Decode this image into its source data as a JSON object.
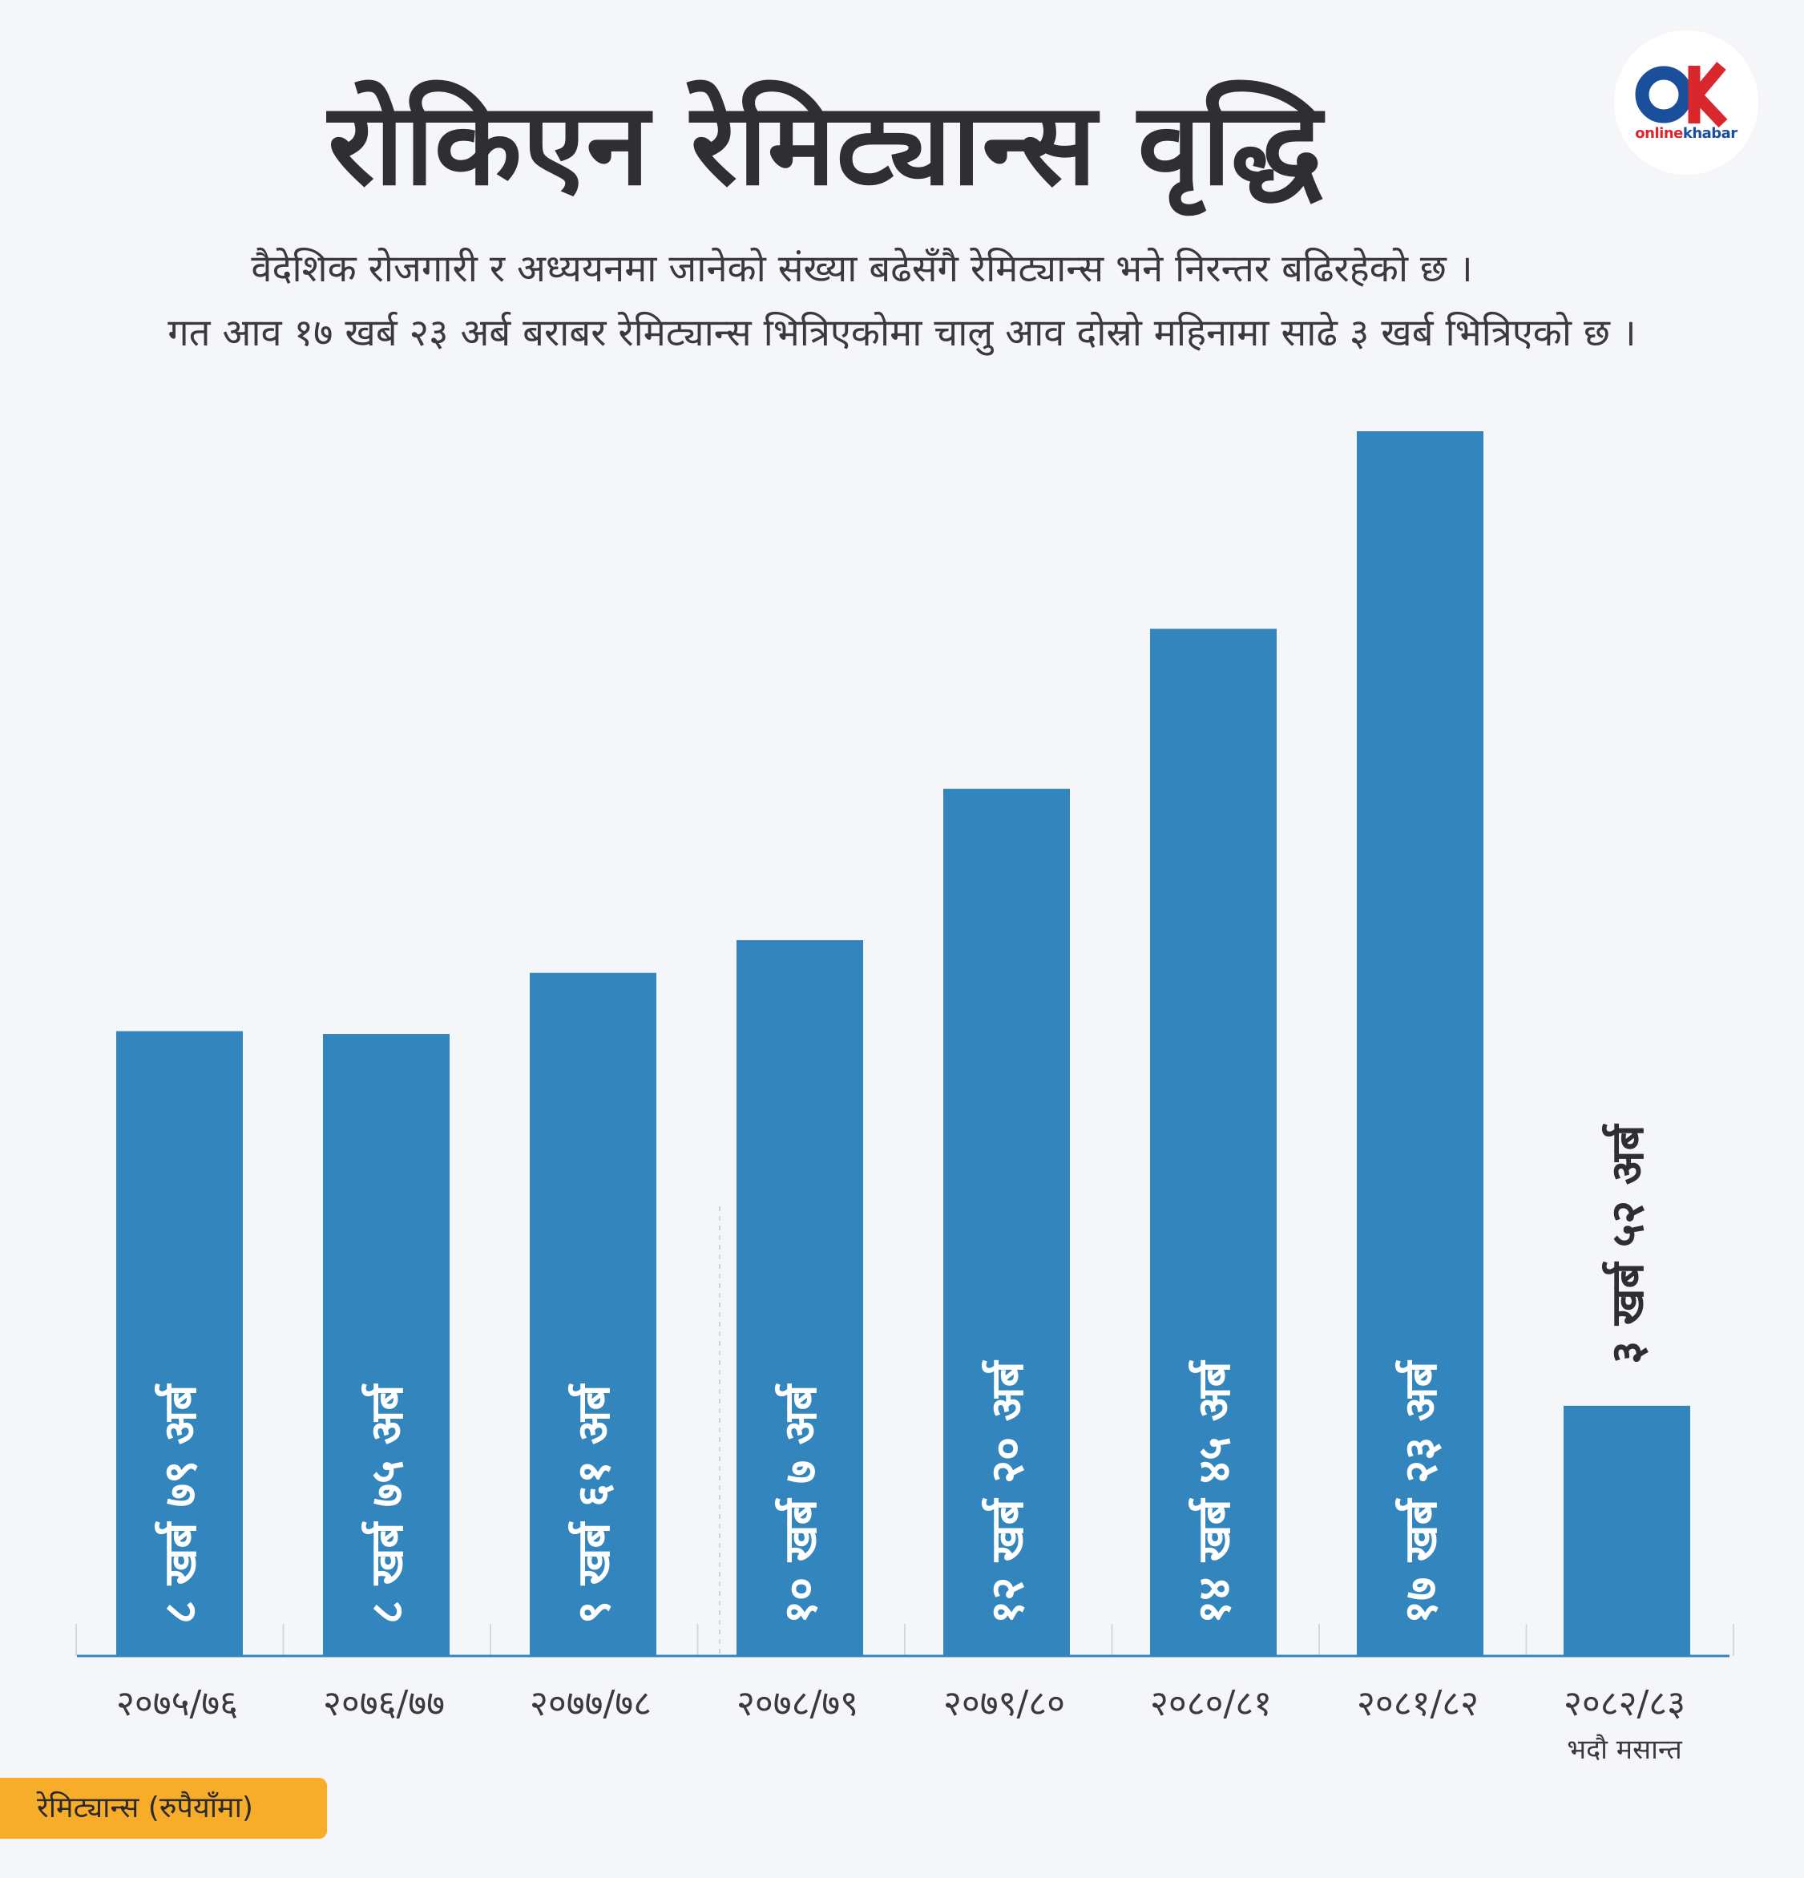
{
  "header": {
    "title": "रोकिएन रेमिट्यान्स वृद्धि",
    "subtitle_line1": "वैदेशिक रोजगारी र अध्ययनमा जानेको संख्या बढेसँगै रेमिट्यान्स भने निरन्तर  बढिरहेको छ ।",
    "subtitle_line2": "गत आव १७ खर्ब २३ अर्ब बराबर रेमिट्यान्स भित्रिएकोमा चालु आव दोस्रो महिनामा साढे ३ खर्ब भित्रिएको छ ।"
  },
  "logo": {
    "icon": "onlinekhabar-ok-logo",
    "text_part1": "online",
    "text_part2": "khabar"
  },
  "legend": {
    "label": "रेमिट्यान्स (रुपैयाँमा)",
    "color": "#f8ad2a"
  },
  "colors": {
    "bar": "#3385bd",
    "background": "#f4f6fa",
    "text": "#2f2f31"
  },
  "chart_data": {
    "type": "bar",
    "categories": [
      "२०७५/७६",
      "२०७६/७७",
      "२०७७/७८",
      "२०७८/७९",
      "२०७९/८०",
      "२०८०/८१",
      "२०८१/८२",
      "२०८२/८३"
    ],
    "category_sublabels": [
      "",
      "",
      "",
      "",
      "",
      "",
      "",
      "भदौ मसान्त"
    ],
    "values": [
      879,
      875,
      961,
      1007,
      1220,
      1445,
      1723,
      352
    ],
    "value_unit": "अर्ब रुपैयाँ",
    "data_labels": [
      "८ खर्ब ७९ अर्ब",
      "८ खर्ब ७५ अर्ब",
      "९ खर्ब ६१ अर्ब",
      "१० खर्ब ७ अर्ब",
      "१२ खर्ब २० अर्ब",
      "१४ खर्ब ४५ अर्ब",
      "१७ खर्ब २३ अर्ब",
      "३ खर्ब ५२ अर्ब"
    ],
    "title": "रोकिएन रेमिट्यान्स वृद्धि",
    "xlabel": "",
    "ylabel": "",
    "ylim": [
      0,
      1723
    ],
    "grid": false,
    "legend": "bottom-left"
  }
}
